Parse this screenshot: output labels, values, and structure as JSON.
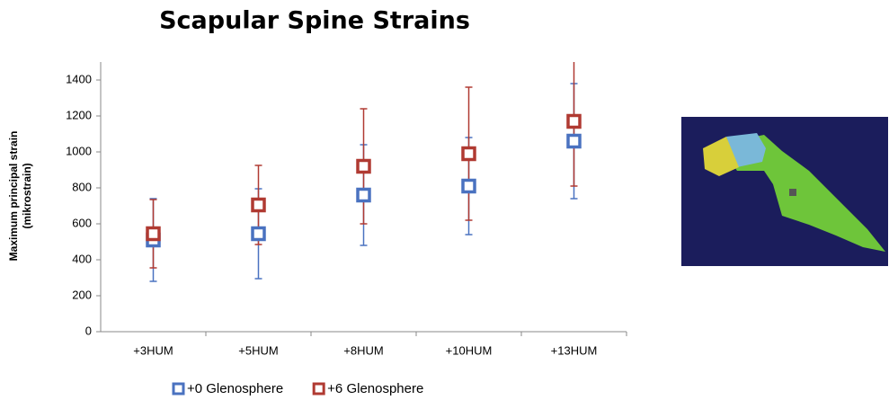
{
  "chart_data": {
    "type": "errorbar",
    "title": "Scapular Spine Strains",
    "y_label": [
      "Maximum principal strain",
      "(mikrostrain)"
    ],
    "categories": [
      "+3HUM",
      "+5HUM",
      "+8HUM",
      "+10HUM",
      "+13HUM"
    ],
    "series": [
      {
        "name": "+0 Glenosphere",
        "color": "#4a72c0",
        "values": [
          510,
          545,
          760,
          810,
          1060
        ],
        "errors": [
          230,
          250,
          280,
          270,
          320
        ]
      },
      {
        "name": "+6 Glenosphere",
        "color": "#b03a32",
        "values": [
          545,
          705,
          920,
          990,
          1170
        ],
        "errors": [
          190,
          220,
          320,
          370,
          360
        ]
      }
    ],
    "ylim": [
      0,
      1500
    ],
    "yticks": [
      0,
      200,
      400,
      600,
      800,
      1000,
      1200,
      1400
    ],
    "grid": false
  }
}
